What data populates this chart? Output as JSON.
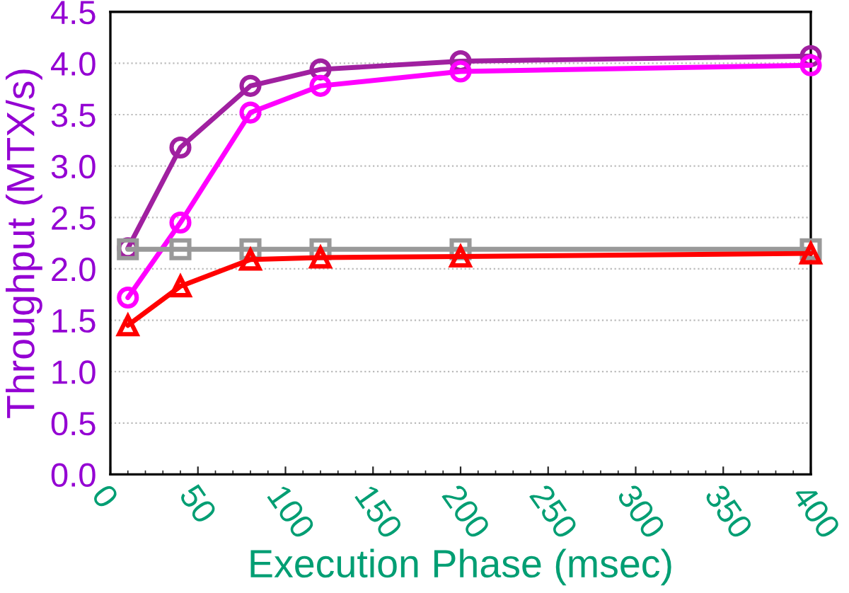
{
  "chart_data": {
    "type": "line",
    "xlabel": "Execution Phase (msec)",
    "ylabel": "Throughput (MTX/s)",
    "x": [
      10,
      40,
      80,
      120,
      200,
      400
    ],
    "series": [
      {
        "color": "#a020a0",
        "marker": "circle",
        "values": [
          2.2,
          3.18,
          3.78,
          3.94,
          4.02,
          4.07
        ]
      },
      {
        "color": "#ff00ff",
        "marker": "circle",
        "values": [
          1.72,
          2.45,
          3.52,
          3.78,
          3.92,
          3.98
        ]
      },
      {
        "color": "#999999",
        "marker": "square",
        "values": [
          2.19,
          2.19,
          2.19,
          2.19,
          2.19,
          2.19
        ]
      },
      {
        "color": "#ff0000",
        "marker": "triangle",
        "values": [
          1.45,
          1.83,
          2.09,
          2.11,
          2.12,
          2.15
        ]
      }
    ],
    "xlim": [
      0,
      400
    ],
    "xticks": [
      0,
      50,
      100,
      150,
      200,
      250,
      300,
      350,
      400
    ],
    "ylim": [
      0,
      4.5
    ],
    "yticks": [
      {
        "value": 0,
        "label": "0.0"
      },
      {
        "value": 0.5,
        "label": "0.5"
      },
      {
        "value": 1,
        "label": "1.0"
      },
      {
        "value": 1.5,
        "label": "1.5"
      },
      {
        "value": 2,
        "label": "2.0"
      },
      {
        "value": 2.5,
        "label": "2.5"
      },
      {
        "value": 3,
        "label": "3.0"
      },
      {
        "value": 3.5,
        "label": "3.5"
      },
      {
        "value": 4,
        "label": "4.0"
      },
      {
        "value": 4.5,
        "label": "4.5"
      }
    ],
    "grid": "y",
    "legend": false
  }
}
